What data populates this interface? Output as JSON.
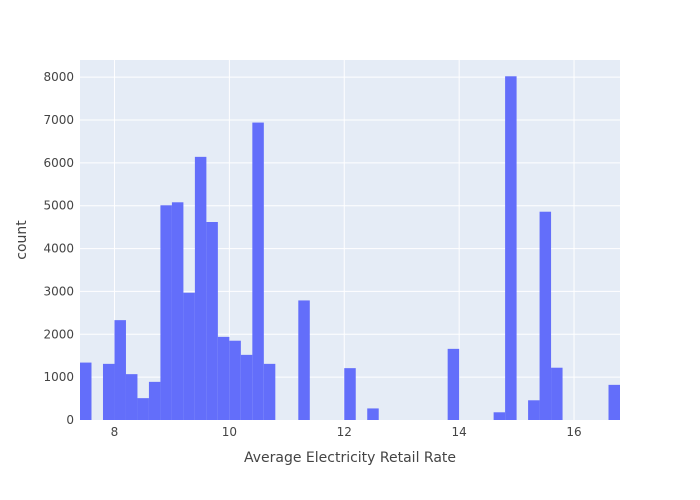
{
  "chart_data": {
    "type": "bar",
    "subtype": "histogram",
    "xlabel": "Average Electricity Retail Rate",
    "ylabel": "count",
    "xlim": [
      7.4,
      16.8
    ],
    "ylim": [
      0,
      8400
    ],
    "bin_width": 0.2,
    "x_ticks": [
      8,
      10,
      12,
      14,
      16
    ],
    "y_ticks": [
      0,
      1000,
      2000,
      3000,
      4000,
      5000,
      6000,
      7000,
      8000
    ],
    "bins": [
      {
        "x0": 7.4,
        "x1": 7.6,
        "count": 1340
      },
      {
        "x0": 7.6,
        "x1": 7.8,
        "count": 0
      },
      {
        "x0": 7.8,
        "x1": 8.0,
        "count": 1310
      },
      {
        "x0": 8.0,
        "x1": 8.2,
        "count": 2330
      },
      {
        "x0": 8.2,
        "x1": 8.4,
        "count": 1070
      },
      {
        "x0": 8.4,
        "x1": 8.6,
        "count": 510
      },
      {
        "x0": 8.6,
        "x1": 8.8,
        "count": 890
      },
      {
        "x0": 8.8,
        "x1": 9.0,
        "count": 5010
      },
      {
        "x0": 9.0,
        "x1": 9.2,
        "count": 5080
      },
      {
        "x0": 9.2,
        "x1": 9.4,
        "count": 2970
      },
      {
        "x0": 9.4,
        "x1": 9.6,
        "count": 6140
      },
      {
        "x0": 9.6,
        "x1": 9.8,
        "count": 4620
      },
      {
        "x0": 9.8,
        "x1": 10.0,
        "count": 1940
      },
      {
        "x0": 10.0,
        "x1": 10.2,
        "count": 1850
      },
      {
        "x0": 10.2,
        "x1": 10.4,
        "count": 1520
      },
      {
        "x0": 10.4,
        "x1": 10.6,
        "count": 6940
      },
      {
        "x0": 10.6,
        "x1": 10.8,
        "count": 1310
      },
      {
        "x0": 11.2,
        "x1": 11.4,
        "count": 2790
      },
      {
        "x0": 12.0,
        "x1": 12.2,
        "count": 1210
      },
      {
        "x0": 12.4,
        "x1": 12.6,
        "count": 270
      },
      {
        "x0": 13.8,
        "x1": 14.0,
        "count": 1660
      },
      {
        "x0": 14.6,
        "x1": 14.8,
        "count": 180
      },
      {
        "x0": 14.8,
        "x1": 15.0,
        "count": 8020
      },
      {
        "x0": 15.2,
        "x1": 15.4,
        "count": 460
      },
      {
        "x0": 15.4,
        "x1": 15.6,
        "count": 4860
      },
      {
        "x0": 15.6,
        "x1": 15.8,
        "count": 1220
      },
      {
        "x0": 16.6,
        "x1": 16.8,
        "count": 820
      }
    ],
    "grid": true,
    "legend": "none",
    "colors": {
      "bar": "#636efa",
      "plot_background": "#e5ecf6",
      "gridline": "#ffffff",
      "text": "#444444"
    }
  }
}
